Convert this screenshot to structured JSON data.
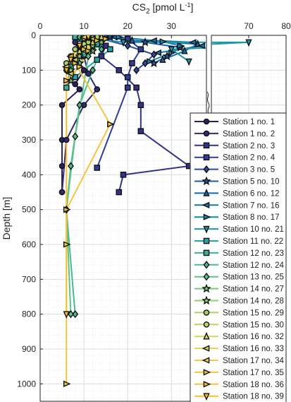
{
  "chart_data": {
    "type": "line",
    "title": "",
    "xlabel": "CS",
    "xlabel_sub": "2",
    "xlabel_unit_pre": " [pmol L",
    "xlabel_unit_sup": "-1",
    "xlabel_unit_post": "]",
    "ylabel": "Depth [m]",
    "xlim": [
      0,
      80
    ],
    "xlim_break": [
      38,
      60
    ],
    "ylim": [
      1050,
      0
    ],
    "x_ticks": [
      0,
      10,
      20,
      30,
      70,
      80
    ],
    "y_ticks": [
      0,
      100,
      200,
      300,
      400,
      500,
      600,
      700,
      800,
      900,
      1000
    ],
    "grid": true,
    "legend_position": "right",
    "series": [
      {
        "name": "Station 1 no. 1",
        "marker": "circle",
        "color": "#2b1f63",
        "points": [
          [
            10,
            10
          ],
          [
            9,
            40
          ],
          [
            8,
            70
          ],
          [
            10,
            100
          ],
          [
            8,
            140
          ],
          [
            9,
            155
          ],
          [
            5,
            200
          ],
          [
            5,
            300
          ],
          [
            5,
            375
          ],
          [
            5,
            450
          ]
        ]
      },
      {
        "name": "Station 1 no. 2",
        "marker": "circle",
        "color": "#312a75",
        "points": [
          [
            8,
            20
          ],
          [
            10,
            60
          ],
          [
            11,
            110
          ],
          [
            13,
            155
          ],
          [
            10,
            200
          ],
          [
            6,
            300
          ],
          [
            5,
            450
          ]
        ]
      },
      {
        "name": "Station 2 no. 3",
        "marker": "square",
        "color": "#33338a",
        "points": [
          [
            12,
            15
          ],
          [
            15,
            30
          ],
          [
            14,
            60
          ],
          [
            18,
            100
          ],
          [
            22,
            150
          ],
          [
            23,
            200
          ],
          [
            23,
            275
          ],
          [
            34,
            375
          ],
          [
            19,
            400
          ],
          [
            18,
            450
          ]
        ]
      },
      {
        "name": "Station 2 no. 4",
        "marker": "square",
        "color": "#313d97",
        "points": [
          [
            20,
            10
          ],
          [
            23,
            40
          ],
          [
            21,
            80
          ],
          [
            20,
            120
          ],
          [
            20,
            150
          ],
          [
            13,
            380
          ]
        ]
      },
      {
        "name": "Station 3 no. 5",
        "marker": "diamond",
        "color": "#2a4ba1",
        "points": [
          [
            14,
            10
          ],
          [
            20,
            30
          ],
          [
            26,
            55
          ],
          [
            24,
            80
          ],
          [
            22,
            100
          ]
        ]
      },
      {
        "name": "Station 5 no. 10",
        "marker": "star",
        "color": "#1e5aa8",
        "points": [
          [
            16,
            5
          ],
          [
            24,
            20
          ],
          [
            32,
            35
          ],
          [
            29,
            60
          ],
          [
            26,
            80
          ]
        ]
      },
      {
        "name": "Station 6 no. 12",
        "marker": "triangle-up",
        "color": "#1668ab",
        "points": [
          [
            15,
            5
          ],
          [
            21,
            15
          ],
          [
            36,
            25
          ],
          [
            33,
            45
          ],
          [
            28,
            70
          ]
        ]
      },
      {
        "name": "Station 7 no. 16",
        "marker": "triangle-left",
        "color": "#1478ad",
        "points": [
          [
            17,
            5
          ],
          [
            26,
            15
          ],
          [
            35,
            20
          ],
          [
            37,
            30
          ],
          [
            27,
            50
          ]
        ]
      },
      {
        "name": "Station 8 no. 17",
        "marker": "triangle-right",
        "color": "#1887ad",
        "points": [
          [
            18,
            5
          ],
          [
            28,
            18
          ],
          [
            32,
            30
          ],
          [
            30,
            50
          ],
          [
            25,
            75
          ]
        ]
      },
      {
        "name": "Station 10 no. 21",
        "marker": "triangle-down",
        "color": "#1e96aa",
        "points": [
          [
            10,
            5
          ],
          [
            19,
            20
          ],
          [
            70,
            20
          ],
          [
            30,
            40
          ],
          [
            34,
            75
          ]
        ]
      },
      {
        "name": "Station 11 no. 22",
        "marker": "square",
        "color": "#27a4a5",
        "points": [
          [
            9,
            10
          ],
          [
            12,
            20
          ],
          [
            16,
            40
          ],
          [
            13,
            70
          ],
          [
            8,
            120
          ]
        ]
      },
      {
        "name": "Station 12 no. 23",
        "marker": "square",
        "color": "#35b09c",
        "points": [
          [
            8,
            5
          ],
          [
            13,
            25
          ],
          [
            10,
            55
          ],
          [
            7,
            90
          ],
          [
            6,
            150
          ]
        ]
      },
      {
        "name": "Station 12 no. 24",
        "marker": "diamond",
        "color": "#48ba91",
        "points": [
          [
            11,
            15
          ],
          [
            14,
            40
          ],
          [
            12,
            100
          ],
          [
            9,
            200
          ],
          [
            7,
            375
          ],
          [
            6,
            500
          ],
          [
            8,
            800
          ]
        ]
      },
      {
        "name": "Station 13 no. 25",
        "marker": "diamond",
        "color": "#5ec386",
        "points": [
          [
            9,
            5
          ],
          [
            12,
            30
          ],
          [
            11,
            60
          ],
          [
            8,
            290
          ],
          [
            6,
            500
          ],
          [
            7,
            800
          ]
        ]
      },
      {
        "name": "Station 14 no. 27",
        "marker": "star",
        "color": "#76ca7a",
        "points": [
          [
            12,
            5
          ],
          [
            14,
            20
          ],
          [
            12,
            45
          ],
          [
            9,
            80
          ],
          [
            7,
            130
          ]
        ]
      },
      {
        "name": "Station 14 no. 28",
        "marker": "star",
        "color": "#8ecf70",
        "points": [
          [
            10,
            10
          ],
          [
            12,
            30
          ],
          [
            9,
            60
          ],
          [
            7,
            100
          ]
        ]
      },
      {
        "name": "Station 15 no. 29",
        "marker": "circle",
        "color": "#a6d367",
        "points": [
          [
            13,
            5
          ],
          [
            11,
            20
          ],
          [
            8,
            40
          ],
          [
            6,
            80
          ]
        ]
      },
      {
        "name": "Station 15 no. 30",
        "marker": "circle",
        "color": "#bdd65f",
        "points": [
          [
            11,
            5
          ],
          [
            10,
            25
          ],
          [
            7,
            60
          ],
          [
            6,
            100
          ]
        ]
      },
      {
        "name": "Station 16 no. 32",
        "marker": "triangle-up",
        "color": "#d2d757",
        "points": [
          [
            14,
            5
          ],
          [
            12,
            20
          ],
          [
            9,
            45
          ],
          [
            7,
            75
          ]
        ]
      },
      {
        "name": "Station 16 no. 33",
        "marker": "triangle-left",
        "color": "#e2d34e",
        "points": [
          [
            12,
            10
          ],
          [
            10,
            35
          ],
          [
            8,
            70
          ],
          [
            7,
            110
          ]
        ]
      },
      {
        "name": "Station 17 no. 34",
        "marker": "triangle-left",
        "color": "#eccd44",
        "points": [
          [
            10,
            5
          ],
          [
            9,
            30
          ],
          [
            7,
            60
          ],
          [
            6,
            90
          ]
        ]
      },
      {
        "name": "Station 17 no. 35",
        "marker": "triangle-right",
        "color": "#f4c63c",
        "points": [
          [
            15,
            10
          ],
          [
            10,
            40
          ],
          [
            8,
            80
          ],
          [
            16,
            255
          ],
          [
            6,
            500
          ],
          [
            6,
            600
          ],
          [
            6,
            1000
          ]
        ]
      },
      {
        "name": "Station 18 no. 36",
        "marker": "triangle-right",
        "color": "#f8c234",
        "points": [
          [
            13,
            15
          ],
          [
            11,
            45
          ],
          [
            9,
            90
          ],
          [
            6,
            130
          ]
        ]
      },
      {
        "name": "Station 18 no. 39",
        "marker": "triangle-down",
        "color": "#fbbe2d",
        "points": [
          [
            11,
            5
          ],
          [
            9,
            30
          ],
          [
            7,
            70
          ],
          [
            6,
            100
          ],
          [
            6,
            800
          ]
        ]
      }
    ]
  }
}
